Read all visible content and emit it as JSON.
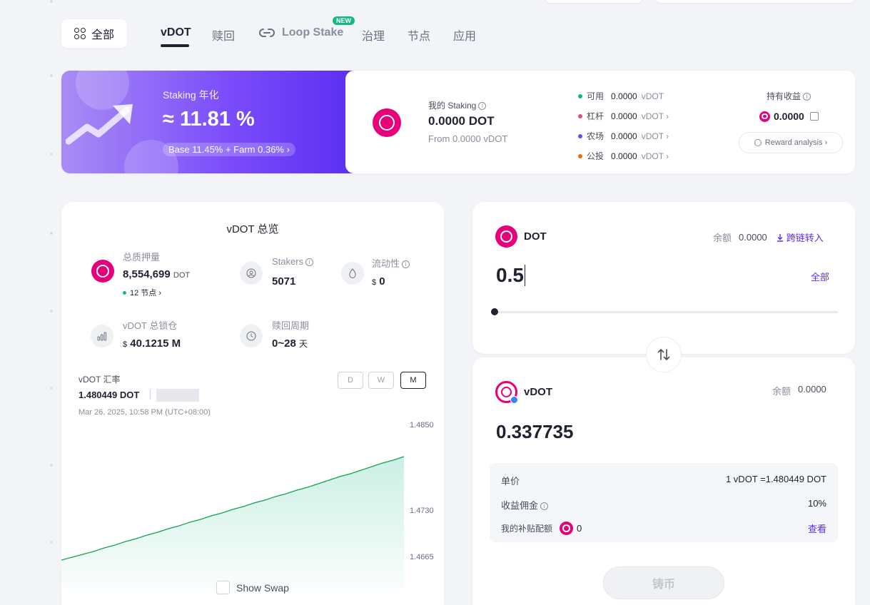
{
  "nav": {
    "all_label": "全部",
    "tabs": [
      {
        "label": "vDOT"
      },
      {
        "label": "赎回"
      },
      {
        "label": "Loop Stake"
      },
      {
        "label": "治理"
      },
      {
        "label": "节点"
      },
      {
        "label": "应用"
      }
    ],
    "new_badge": "NEW"
  },
  "banner": {
    "staking_apy_label": "Staking 年化",
    "staking_apy_value": "≈ 11.81 %",
    "apy_breakdown": "Base 11.45% + Farm 0.36% ›",
    "my_staking_label": "我的 Staking",
    "my_staking_value": "0.0000 DOT",
    "my_staking_from": "From 0.0000 vDOT",
    "positions": [
      {
        "label": "可用",
        "value": "0.0000",
        "unit": "vDOT",
        "color": "#12b886",
        "arrow": ""
      },
      {
        "label": "杠杆",
        "value": "0.0000",
        "unit": "vDOT ›",
        "color": "#e64980",
        "arrow": ""
      },
      {
        "label": "农场",
        "value": "0.0000",
        "unit": "vDOT ›",
        "color": "#7048e8",
        "arrow": ""
      },
      {
        "label": "公投",
        "value": "0.0000",
        "unit": "vDOT ›",
        "color": "#f76707",
        "arrow": ""
      }
    ],
    "earnings_label": "持有收益",
    "earnings_value": "0.0000",
    "reward_analysis": "Reward analysis ›"
  },
  "overview": {
    "title": "vDOT 总览",
    "total_staked_label": "总质押量",
    "total_staked_value": "8,554,699",
    "total_staked_unit": "DOT",
    "nodes": "12 节点 ›",
    "stakers_label": "Stakers",
    "stakers_value": "5071",
    "liquidity_label": "流动性",
    "liquidity_currency": "$",
    "liquidity_value": "0",
    "tvl_label": "vDOT 总锁仓",
    "tvl_currency": "$",
    "tvl_value": "40.1215 M",
    "redeem_period_label": "赎回周期",
    "redeem_period_value": "0~28",
    "redeem_period_unit": "天",
    "rate_label": "vDOT 汇率",
    "rate_value": "1.480449 DOT",
    "rate_time": "Mar 26, 2025, 10:58 PM (UTC+08:00)",
    "periods": [
      "D",
      "W",
      "M"
    ],
    "active_period": "M",
    "show_swap": "Show Swap"
  },
  "chart_data": {
    "type": "area",
    "title": "vDOT 汇率",
    "y_ticks": [
      "1.4850",
      "1.4730",
      "1.4665"
    ],
    "ylim": [
      1.462,
      1.486
    ],
    "series": [
      {
        "values": [
          1.466,
          1.4664,
          1.4668,
          1.4672,
          1.4677,
          1.4681,
          1.4686,
          1.469,
          1.4695,
          1.4699,
          1.4704,
          1.4708,
          1.4713,
          1.4717,
          1.4722,
          1.4726,
          1.4731,
          1.4735,
          1.474,
          1.4744,
          1.4749,
          1.4753,
          1.4758,
          1.4762,
          1.4767,
          1.4772,
          1.4777,
          1.4781,
          1.4786,
          1.4791,
          1.4796,
          1.48,
          1.4805
        ]
      }
    ]
  },
  "swap": {
    "from_token": "DOT",
    "balance_label": "余额",
    "from_balance": "0.0000",
    "cross_chain": "跨链转入",
    "from_amount": "0.5",
    "max_label": "全部",
    "slider_fraction": 0.0,
    "to_token": "vDOT",
    "to_balance": "0.0000",
    "to_amount": "0.337735",
    "price_label": "单价",
    "price_value": "1 vDOT =1.480449 DOT",
    "fee_label": "收益佣金",
    "fee_value": "10%",
    "subsidy_label": "我的补贴配额",
    "subsidy_value": "0",
    "view_label": "查看",
    "mint_button": "铸币"
  },
  "colors": {
    "accent": "#5b2ef2",
    "polkadot_pink": "#e6007a",
    "chart_line": "#12a150"
  }
}
